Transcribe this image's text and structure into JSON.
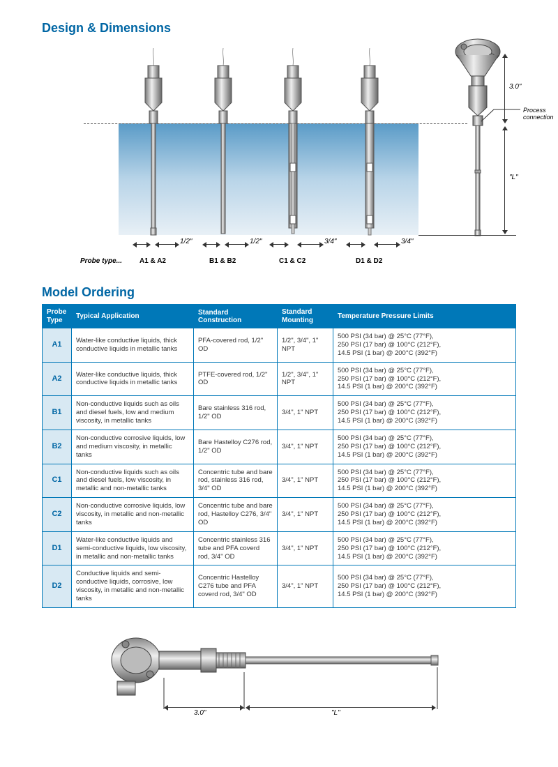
{
  "heading1": "Design & Dimensions",
  "heading2": "Model Ordering",
  "probe_type_label": "Probe type...",
  "probes": [
    {
      "label": "A1 & A2",
      "width_label": "1/2\"",
      "od_ratio": 0.5
    },
    {
      "label": "B1 & B2",
      "width_label": "1/2\"",
      "od_ratio": 0.5
    },
    {
      "label": "C1 & C2",
      "width_label": "3/4\"",
      "od_ratio": 0.75
    },
    {
      "label": "D1 & D2",
      "width_label": "3/4\"",
      "od_ratio": 0.75
    }
  ],
  "dim_upper": "3.0\"",
  "dim_lower": "\"L\"",
  "callout": "Process connection",
  "columns": [
    "Probe Type",
    "Typical Application",
    "Standard Construction",
    "Standard Mounting",
    "Temperature Pressure Limits"
  ],
  "rows": [
    {
      "pt": "A1",
      "app": "Water-like conductive liquids, thick conductive liquids in metallic tanks",
      "con": "PFA-covered rod, 1/2\" OD",
      "mount": "1/2\", 3/4\", 1\" NPT",
      "tpl": "500 PSI (34 bar) @ 25°C (77°F),\n250 PSI (17 bar) @ 100°C (212°F),\n14.5 PSI (1 bar) @ 200°C (392°F)"
    },
    {
      "pt": "A2",
      "app": "Water-like conductive liquids, thick conductive liquids in metallic tanks",
      "con": "PTFE-covered rod, 1/2\" OD",
      "mount": "1/2\", 3/4\", 1\" NPT",
      "tpl": "500 PSI (34 bar) @ 25°C (77°F),\n250 PSI (17 bar) @ 100°C (212°F),\n14.5 PSI (1 bar) @ 200°C (392°F)"
    },
    {
      "pt": "B1",
      "app": "Non-conductive liquids such as oils and diesel fuels, low and medium viscosity, in metallic tanks",
      "con": "Bare stainless 316 rod, 1/2\" OD",
      "mount": "3/4\", 1\" NPT",
      "tpl": "500 PSI (34 bar) @ 25°C (77°F),\n250 PSI (17 bar) @ 100°C (212°F),\n14.5 PSI (1 bar) @ 200°C (392°F)"
    },
    {
      "pt": "B2",
      "app": "Non-conductive corrosive liquids, low and medium viscosity, in metallic tanks",
      "con": "Bare Hastelloy C276 rod, 1/2\" OD",
      "mount": "3/4\", 1\" NPT",
      "tpl": "500 PSI (34 bar) @ 25°C (77°F),\n250 PSI (17 bar) @ 100°C (212°F),\n14.5 PSI (1 bar) @ 200°C (392°F)"
    },
    {
      "pt": "C1",
      "app": "Non-conductive liquids such as oils and diesel fuels, low viscosity, in metallic and non-metallic tanks",
      "con": "Concentric tube and bare rod, stainless 316 rod, 3/4\" OD",
      "mount": "3/4\", 1\" NPT",
      "tpl": "500 PSI (34 bar) @ 25°C (77°F),\n250 PSI (17 bar) @ 100°C (212°F),\n14.5 PSI (1 bar) @ 200°C (392°F)"
    },
    {
      "pt": "C2",
      "app": "Non-conductive corrosive liquids, low viscosity, in metallic and non-metallic tanks",
      "con": "Concentric tube and bare rod, Hastelloy C276, 3/4\" OD",
      "mount": "3/4\", 1\" NPT",
      "tpl": "500 PSI (34 bar) @ 25°C (77°F),\n250 PSI (17 bar) @ 100°C (212°F),\n14.5 PSI (1 bar) @ 200°C (392°F)"
    },
    {
      "pt": "D1",
      "app": "Water-like conductive liquids and semi-conductive liquids, low viscosity, in metallic and non-metallic tanks",
      "con": "Concentric stainless 316 tube and PFA coverd rod, 3/4\" OD",
      "mount": "3/4\", 1\" NPT",
      "tpl": "500 PSI (34 bar) @ 25°C (77°F),\n250 PSI (17 bar) @ 100°C (212°F),\n14.5 PSI (1 bar) @ 200°C (392°F)"
    },
    {
      "pt": "D2",
      "app": "Conductive liquids and semi-conductive liquids, corrosive, low viscosity, in metallic and non-metallic tanks",
      "con": "Concentric Hastelloy C276 tube and PFA coverd rod, 3/4\" OD",
      "mount": "3/4\", 1\" NPT",
      "tpl": "500 PSI (34 bar) @ 25°C (77°F),\n250 PSI (17 bar) @ 100°C (212°F),\n14.5 PSI (1 bar) @ 200°C (392°F)"
    }
  ],
  "bottom_dim1": "3.0\"",
  "bottom_dim2": "\"L\"",
  "colors": {
    "brand": "#0066a4",
    "th_bg": "#0078b8",
    "pt_bg": "#d8e9f3"
  }
}
